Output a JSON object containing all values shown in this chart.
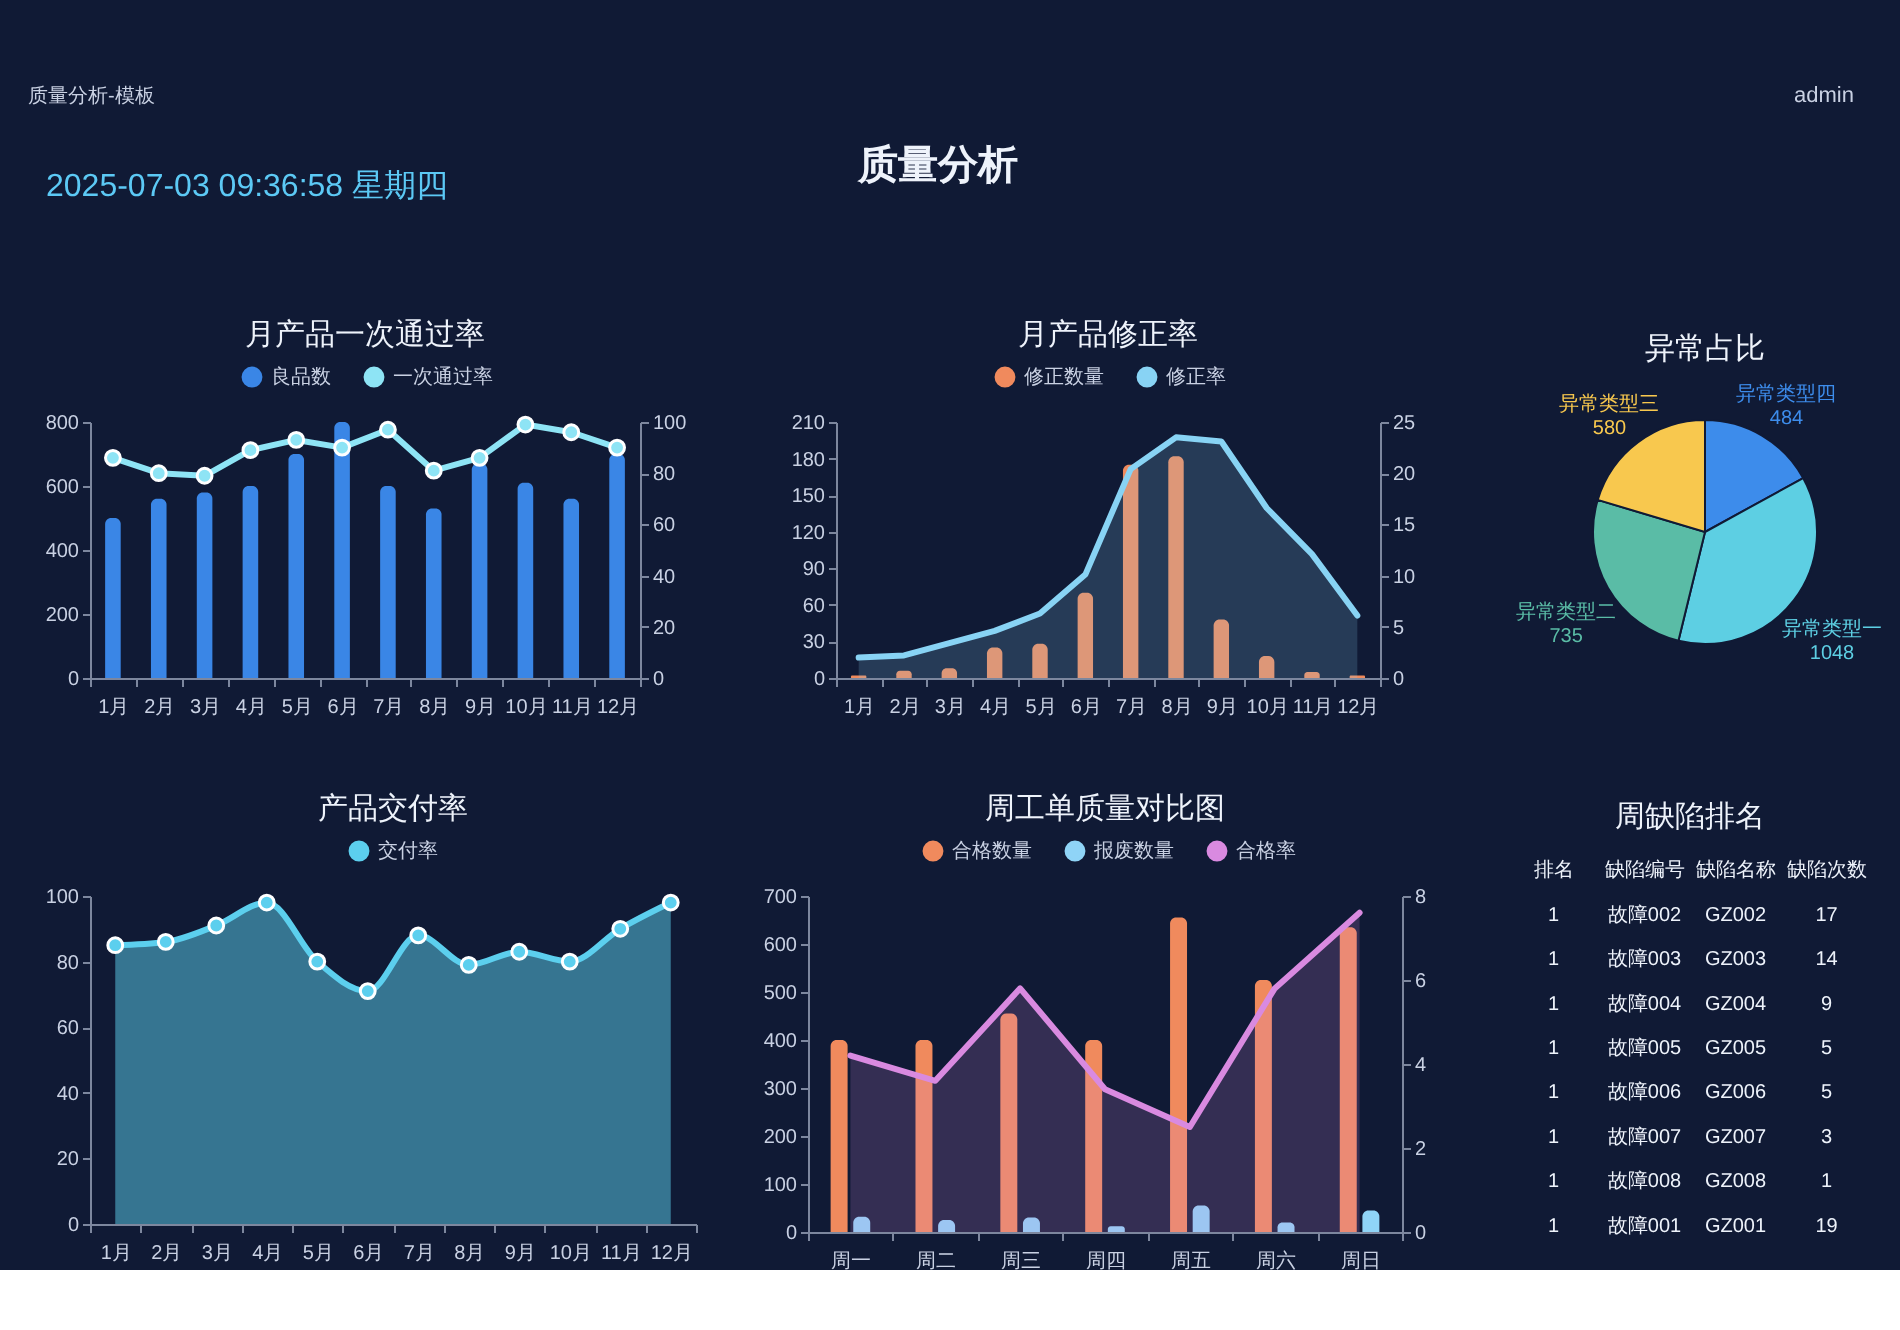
{
  "chart_data": [
    {
      "type": "other",
      "title": "质量分析",
      "annotations": [
        "质量分析-模板",
        "admin",
        "2025-07-03 09:36:58 星期四"
      ]
    },
    {
      "type": "bar",
      "title": "月产品一次通过率",
      "categories": [
        "1月",
        "2月",
        "3月",
        "4月",
        "5月",
        "6月",
        "7月",
        "8月",
        "9月",
        "10月",
        "11月",
        "12月"
      ],
      "series": [
        {
          "name": "良品数",
          "type": "bar",
          "color": "#3a86e6",
          "values": [
            500,
            560,
            580,
            600,
            700,
            800,
            600,
            530,
            670,
            610,
            560,
            700
          ]
        },
        {
          "name": "一次通过率",
          "type": "line",
          "axis": "y2",
          "color": "#8ee4f5",
          "values": [
            86,
            80,
            79,
            89,
            93,
            90,
            97,
            81,
            86,
            99,
            96,
            90
          ]
        }
      ],
      "ylim": [
        0,
        800
      ],
      "yticks": [
        0,
        200,
        400,
        600,
        800
      ],
      "y2lim": [
        0,
        100
      ],
      "y2ticks": [
        0,
        20,
        40,
        60,
        80,
        100
      ],
      "marker": "circle",
      "legend": "top",
      "grid": false
    },
    {
      "type": "bar",
      "title": "月产品修正率",
      "categories": [
        "1月",
        "2月",
        "3月",
        "4月",
        "5月",
        "6月",
        "7月",
        "8月",
        "9月",
        "10月",
        "11月",
        "12月"
      ],
      "series": [
        {
          "name": "修正数量",
          "type": "bar",
          "color": "#f08a5d",
          "values": [
            2,
            6,
            8,
            25,
            28,
            70,
            175,
            182,
            48,
            18,
            5,
            2
          ]
        },
        {
          "name": "修正率",
          "type": "area",
          "axis": "y2",
          "color": "#88d3f4",
          "values": [
            2,
            2.2,
            3.4,
            4.6,
            6.3,
            10.1,
            20.4,
            23.5,
            23.1,
            16.6,
            12.1,
            6.1
          ]
        }
      ],
      "ylim": [
        0,
        210
      ],
      "yticks": [
        0,
        30,
        60,
        90,
        120,
        150,
        180,
        210
      ],
      "y2lim": [
        0,
        25
      ],
      "y2ticks": [
        0,
        5,
        10,
        15,
        20,
        25
      ],
      "legend": "top",
      "grid": false
    },
    {
      "type": "pie",
      "title": "异常占比",
      "categories": [
        "异常类型四",
        "异常类型一",
        "异常类型二",
        "异常类型三"
      ],
      "values": [
        484,
        1048,
        735,
        580
      ],
      "colors": [
        "#3d8ceb",
        "#5dcfe3",
        "#5abca6",
        "#f8c84e"
      ],
      "data_labels": true
    },
    {
      "type": "area",
      "title": "产品交付率",
      "categories": [
        "1月",
        "2月",
        "3月",
        "4月",
        "5月",
        "6月",
        "7月",
        "8月",
        "9月",
        "10月",
        "11月",
        "12月"
      ],
      "series": [
        {
          "name": "交付率",
          "color": "#5ccfee",
          "values": [
            85,
            86,
            91,
            98,
            80,
            71,
            88,
            79,
            83,
            80,
            90,
            98
          ]
        }
      ],
      "ylim": [
        0,
        100
      ],
      "yticks": [
        0,
        20,
        40,
        60,
        80,
        100
      ],
      "marker": "circle",
      "legend": "top",
      "grid": false
    },
    {
      "type": "bar",
      "title": "周工单质量对比图",
      "categories": [
        "周一",
        "周二",
        "周三",
        "周四",
        "周五",
        "周六",
        "周日"
      ],
      "series": [
        {
          "name": "合格数量",
          "type": "bar",
          "color": "#f08a5d",
          "values": [
            400,
            400,
            455,
            400,
            655,
            525,
            635
          ]
        },
        {
          "name": "报废数量",
          "type": "bar",
          "color": "#8fd4f7",
          "values": [
            32,
            25,
            30,
            12,
            55,
            20,
            45
          ]
        },
        {
          "name": "合格率",
          "type": "area",
          "axis": "y2",
          "color": "#d98ae0",
          "values": [
            4.2,
            3.6,
            5.8,
            3.4,
            2.5,
            5.8,
            7.6
          ]
        }
      ],
      "ylim": [
        0,
        700
      ],
      "yticks": [
        0,
        100,
        200,
        300,
        400,
        500,
        600,
        700
      ],
      "y2lim": [
        0,
        8
      ],
      "y2ticks": [
        0,
        2,
        4,
        6,
        8
      ],
      "legend": "top",
      "grid": false
    },
    {
      "type": "other",
      "title": "周缺陷排名",
      "categories": [
        "排名",
        "缺陷编号",
        "缺陷名称",
        "缺陷次数"
      ],
      "cell_labels": [
        [
          "1",
          "故障002",
          "GZ002",
          "17"
        ],
        [
          "1",
          "故障003",
          "GZ003",
          "14"
        ],
        [
          "1",
          "故障004",
          "GZ004",
          "9"
        ],
        [
          "1",
          "故障005",
          "GZ005",
          "5"
        ],
        [
          "1",
          "故障006",
          "GZ006",
          "5"
        ],
        [
          "1",
          "故障007",
          "GZ007",
          "3"
        ],
        [
          "1",
          "故障008",
          "GZ008",
          "1"
        ],
        [
          "1",
          "故障001",
          "GZ001",
          "19"
        ]
      ]
    }
  ]
}
